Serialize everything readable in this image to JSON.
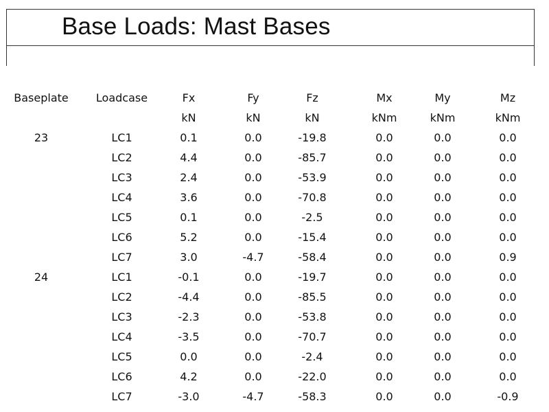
{
  "title": "Base Loads: Mast Bases",
  "header": {
    "names": [
      "Baseplate",
      "Loadcase",
      "Fx",
      "Fy",
      "Fz",
      "Mx",
      "My",
      "Mz"
    ],
    "units": [
      "",
      "",
      "kN",
      "kN",
      "kN",
      "kNm",
      "kNm",
      "kNm"
    ]
  },
  "rows": [
    [
      "23",
      "LC1",
      "0.1",
      "0.0",
      "-19.8",
      "0.0",
      "0.0",
      "0.0"
    ],
    [
      "",
      "LC2",
      "4.4",
      "0.0",
      "-85.7",
      "0.0",
      "0.0",
      "0.0"
    ],
    [
      "",
      "LC3",
      "2.4",
      "0.0",
      "-53.9",
      "0.0",
      "0.0",
      "0.0"
    ],
    [
      "",
      "LC4",
      "3.6",
      "0.0",
      "-70.8",
      "0.0",
      "0.0",
      "0.0"
    ],
    [
      "",
      "LC5",
      "0.1",
      "0.0",
      "-2.5",
      "0.0",
      "0.0",
      "0.0"
    ],
    [
      "",
      "LC6",
      "5.2",
      "0.0",
      "-15.4",
      "0.0",
      "0.0",
      "0.0"
    ],
    [
      "",
      "LC7",
      "3.0",
      "-4.7",
      "-58.4",
      "0.0",
      "0.0",
      "0.9"
    ],
    [
      "24",
      "LC1",
      "-0.1",
      "0.0",
      "-19.7",
      "0.0",
      "0.0",
      "0.0"
    ],
    [
      "",
      "LC2",
      "-4.4",
      "0.0",
      "-85.5",
      "0.0",
      "0.0",
      "0.0"
    ],
    [
      "",
      "LC3",
      "-2.3",
      "0.0",
      "-53.8",
      "0.0",
      "0.0",
      "0.0"
    ],
    [
      "",
      "LC4",
      "-3.5",
      "0.0",
      "-70.7",
      "0.0",
      "0.0",
      "0.0"
    ],
    [
      "",
      "LC5",
      "0.0",
      "0.0",
      "-2.4",
      "0.0",
      "0.0",
      "0.0"
    ],
    [
      "",
      "LC6",
      "4.2",
      "0.0",
      "-22.0",
      "0.0",
      "0.0",
      "0.0"
    ],
    [
      "",
      "LC7",
      "-3.0",
      "-4.7",
      "-58.3",
      "0.0",
      "0.0",
      "-0.9"
    ]
  ]
}
